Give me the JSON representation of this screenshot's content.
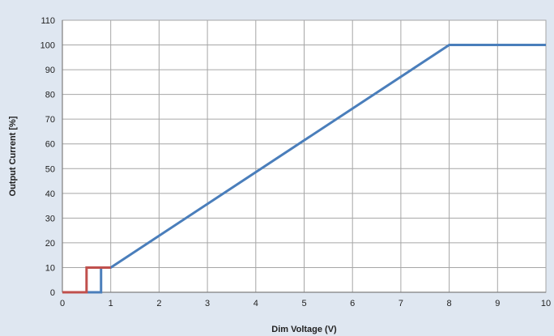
{
  "chart_data": {
    "type": "line",
    "xlabel": "Dim Voltage (V)",
    "ylabel": "Output Current [%]",
    "xlim": [
      0,
      10
    ],
    "ylim": [
      0,
      110
    ],
    "x_ticks": [
      "0",
      "1",
      "2",
      "3",
      "4",
      "5",
      "6",
      "7",
      "8",
      "9",
      "10"
    ],
    "y_ticks": [
      "0",
      "10",
      "20",
      "30",
      "40",
      "50",
      "60",
      "70",
      "80",
      "90",
      "100",
      "110"
    ],
    "grid": true,
    "legend": "none",
    "series": [
      {
        "color": "#4a7ebb",
        "points": [
          [
            0,
            0
          ],
          [
            0.8,
            0
          ],
          [
            0.8,
            10
          ],
          [
            1,
            10
          ],
          [
            8,
            100
          ],
          [
            10,
            100
          ]
        ]
      },
      {
        "color": "#c0504d",
        "points": [
          [
            0,
            0
          ],
          [
            0.5,
            0
          ],
          [
            0.5,
            10
          ],
          [
            1,
            10
          ]
        ]
      }
    ],
    "colors": {
      "background": "#dfe7f1",
      "plot_area": "#ffffff",
      "grid": "#a6a6a6"
    }
  }
}
